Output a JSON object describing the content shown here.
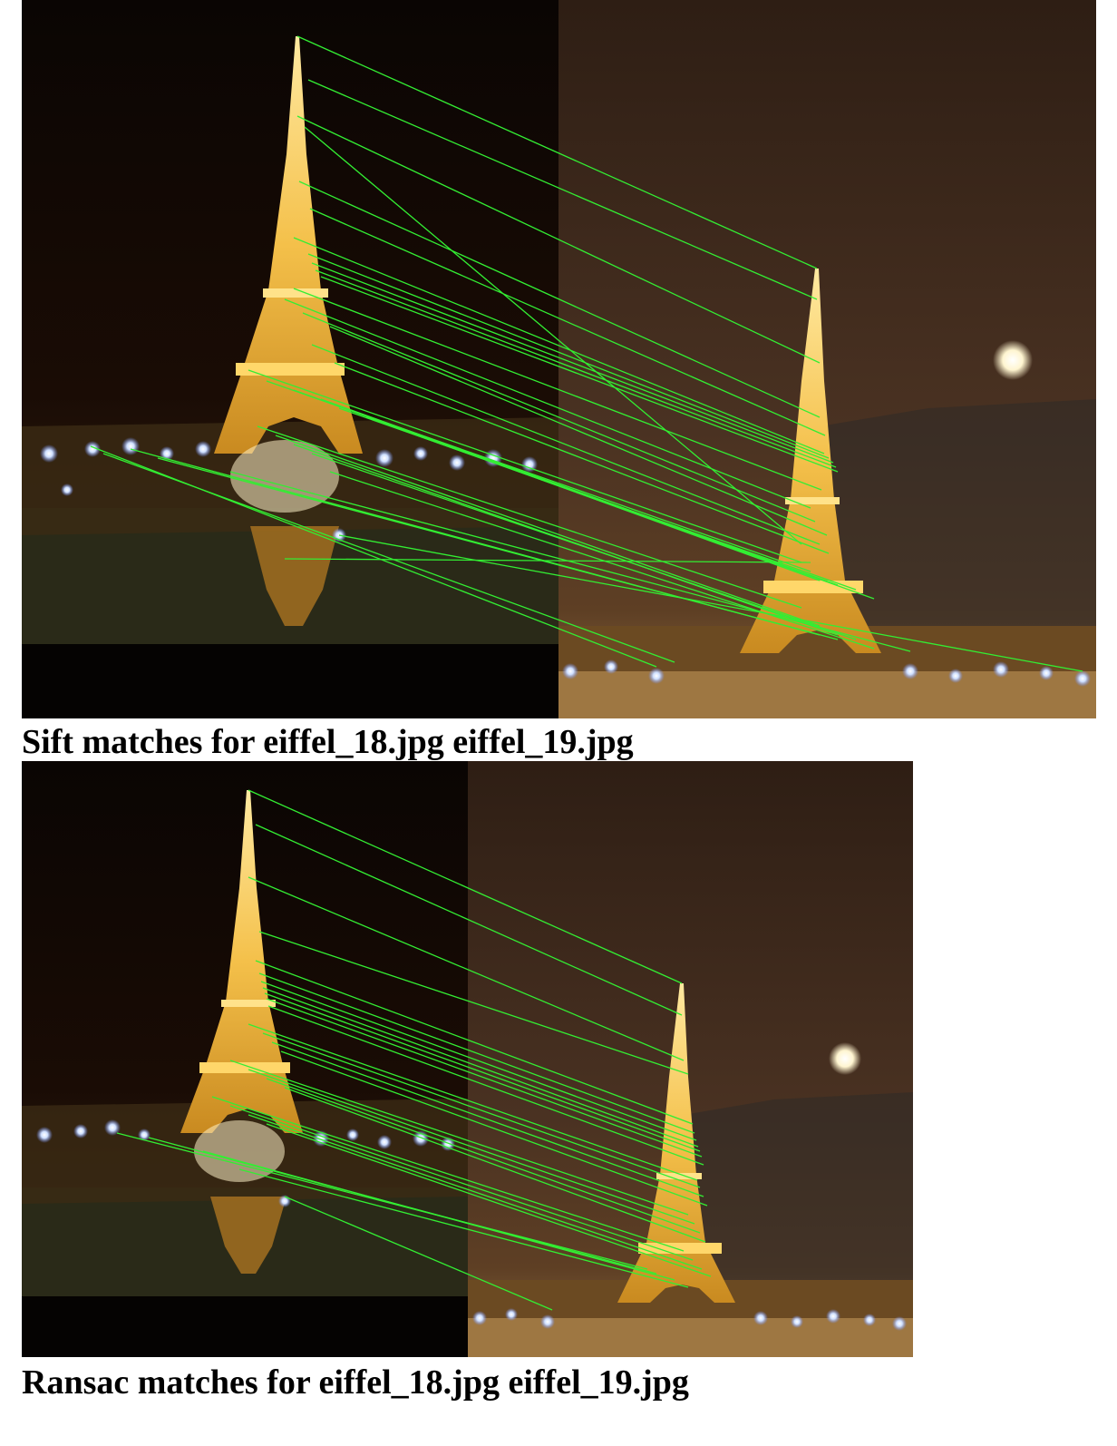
{
  "figures": [
    {
      "id": "sift",
      "caption": "Sift matches for eiffel_18.jpg eiffel_19.jpg",
      "left_image": "eiffel_18.jpg",
      "right_image": "eiffel_19.jpg",
      "match_line_color": "#33ee33"
    },
    {
      "id": "ransac",
      "caption": "Ransac matches for eiffel_18.jpg eiffel_19.jpg",
      "left_image": "eiffel_18.jpg",
      "right_image": "eiffel_19.jpg",
      "match_line_color": "#33ee33"
    }
  ],
  "colors": {
    "night_sky_left": "#0c0604",
    "night_sky_right": "#3a2518",
    "tower_light": "#f2c24a",
    "moon": "#fff8dc"
  }
}
